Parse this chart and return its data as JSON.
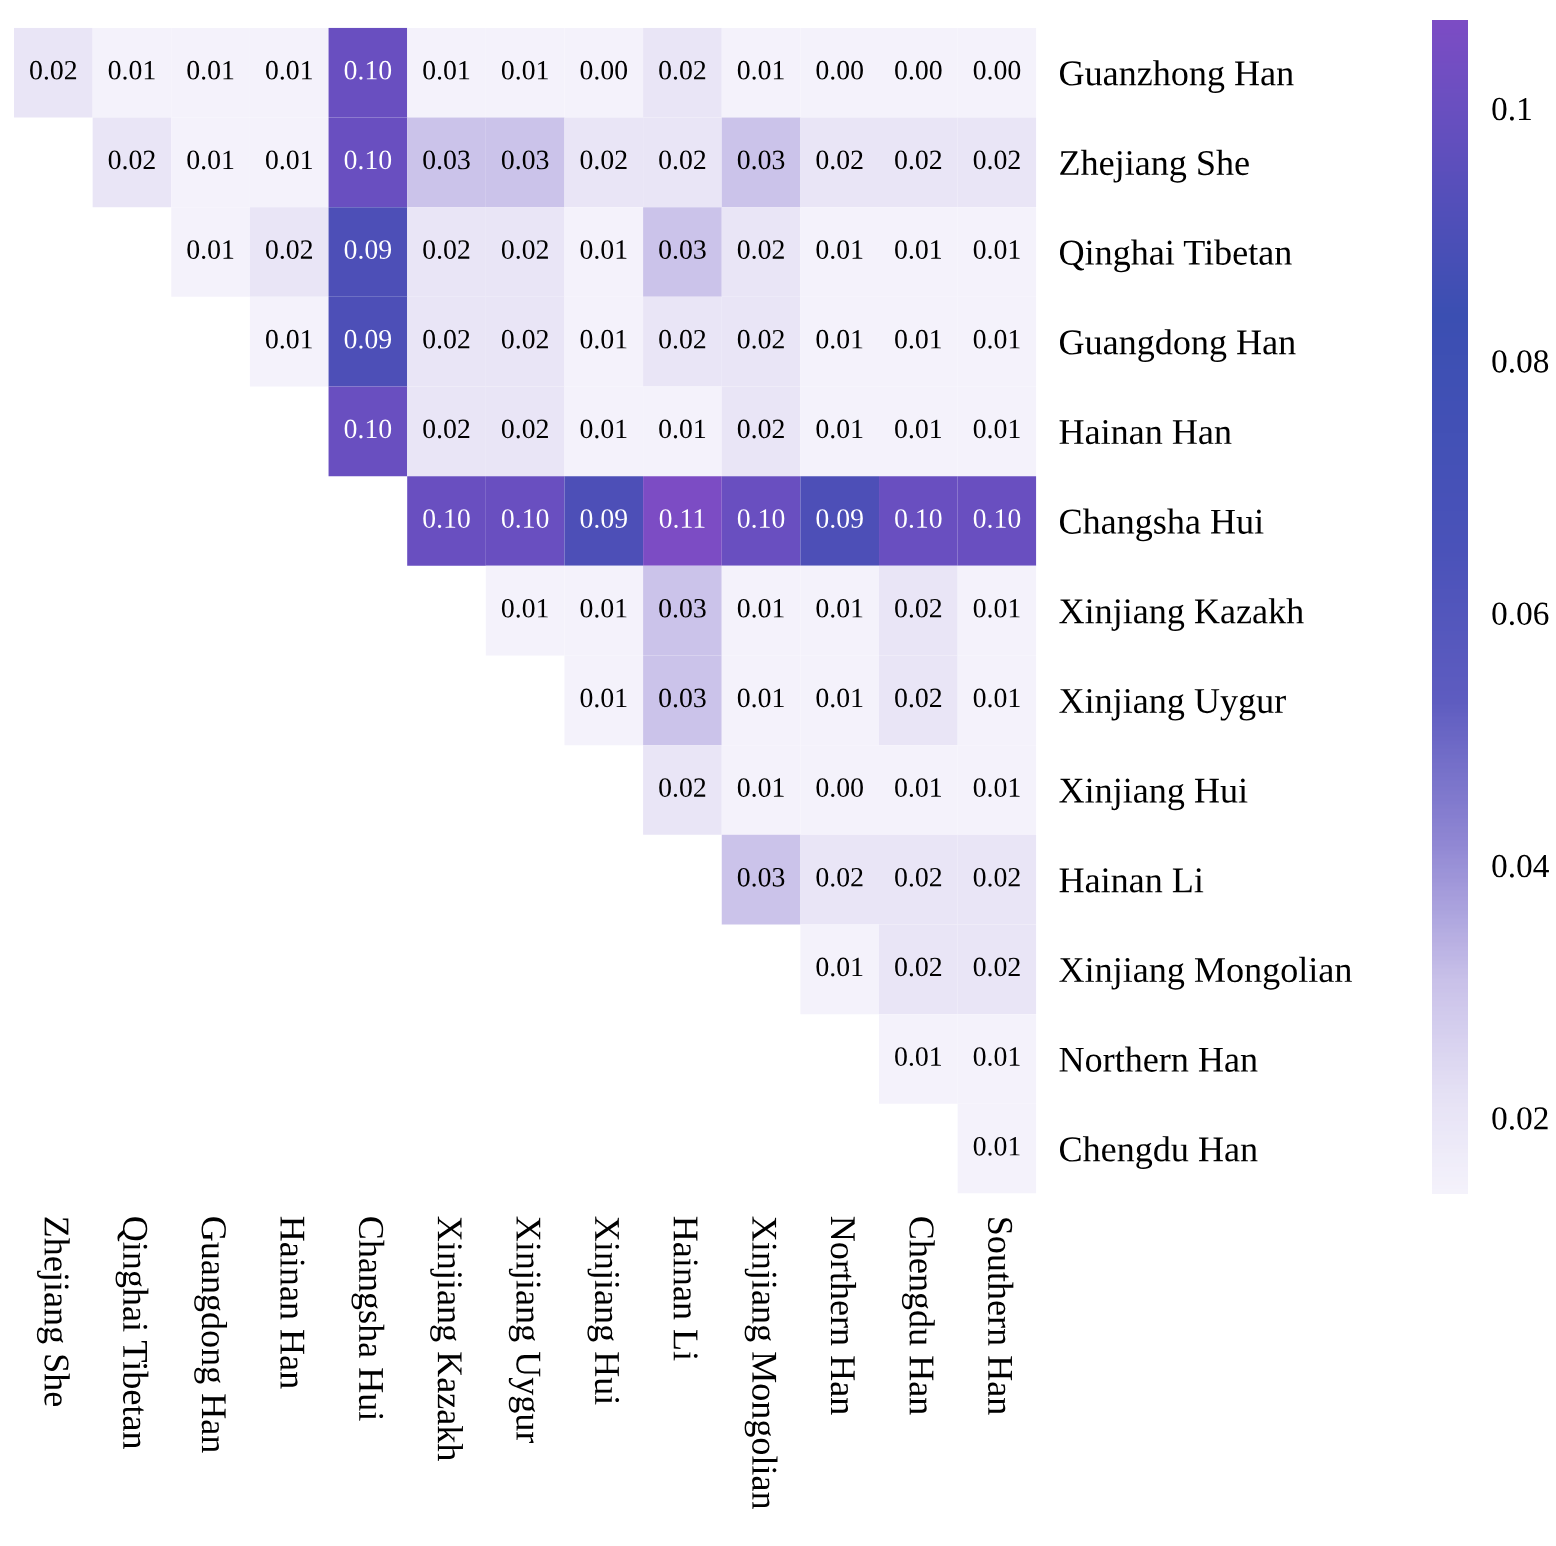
{
  "chart_data": {
    "type": "heatmap",
    "categories": [
      "Zhejiang She",
      "Qinghai Tibetan",
      "Guangdong Han",
      "Hainan Han",
      "Changsha Hui",
      "Xinjiang Kazakh",
      "Xinjiang Uygur",
      "Xinjiang Hui",
      "Hainan Li",
      "Xinjiang Mongolian",
      "Northern Han",
      "Chengdu Han",
      "Southern Han"
    ],
    "y_categories": [
      "Guanzhong Han",
      "Zhejiang She",
      "Qinghai Tibetan",
      "Guangdong Han",
      "Hainan Han",
      "Changsha Hui",
      "Xinjiang Kazakh",
      "Xinjiang Uygur",
      "Xinjiang Hui",
      "Hainan Li",
      "Xinjiang Mongolian",
      "Northern Han",
      "Chengdu Han"
    ],
    "cells": [
      [
        0.02,
        0.01,
        0.01,
        0.01,
        0.1,
        0.01,
        0.01,
        0.0,
        0.02,
        0.01,
        0.0,
        0.0,
        0.0
      ],
      [
        null,
        0.02,
        0.01,
        0.01,
        0.1,
        0.03,
        0.03,
        0.02,
        0.02,
        0.03,
        0.02,
        0.02,
        0.02
      ],
      [
        null,
        null,
        0.01,
        0.02,
        0.09,
        0.02,
        0.02,
        0.01,
        0.03,
        0.02,
        0.01,
        0.01,
        0.01
      ],
      [
        null,
        null,
        null,
        0.01,
        0.09,
        0.02,
        0.02,
        0.01,
        0.02,
        0.02,
        0.01,
        0.01,
        0.01
      ],
      [
        null,
        null,
        null,
        null,
        0.1,
        0.02,
        0.02,
        0.01,
        0.01,
        0.02,
        0.01,
        0.01,
        0.01
      ],
      [
        null,
        null,
        null,
        null,
        null,
        0.1,
        0.1,
        0.09,
        0.11,
        0.1,
        0.09,
        0.1,
        0.1
      ],
      [
        null,
        null,
        null,
        null,
        null,
        null,
        0.01,
        0.01,
        0.03,
        0.01,
        0.01,
        0.02,
        0.01
      ],
      [
        null,
        null,
        null,
        null,
        null,
        null,
        null,
        0.01,
        0.03,
        0.01,
        0.01,
        0.02,
        0.01
      ],
      [
        null,
        null,
        null,
        null,
        null,
        null,
        null,
        null,
        0.02,
        0.01,
        0.0,
        0.01,
        0.01
      ],
      [
        null,
        null,
        null,
        null,
        null,
        null,
        null,
        null,
        null,
        0.03,
        0.02,
        0.02,
        0.02
      ],
      [
        null,
        null,
        null,
        null,
        null,
        null,
        null,
        null,
        null,
        null,
        0.01,
        0.02,
        0.02
      ],
      [
        null,
        null,
        null,
        null,
        null,
        null,
        null,
        null,
        null,
        null,
        null,
        0.01,
        0.01
      ],
      [
        null,
        null,
        null,
        null,
        null,
        null,
        null,
        null,
        null,
        null,
        null,
        null,
        0.01
      ]
    ],
    "cell_labels": [
      [
        "0.02",
        "0.01",
        "0.01",
        "0.01",
        "0.10",
        "0.01",
        "0.01",
        "0.00",
        "0.02",
        "0.01",
        "0.00",
        "0.00",
        "0.00"
      ],
      [
        null,
        "0.02",
        "0.01",
        "0.01",
        "0.10",
        "0.03",
        "0.03",
        "0.02",
        "0.02",
        "0.03",
        "0.02",
        "0.02",
        "0.02"
      ],
      [
        null,
        null,
        "0.01",
        "0.02",
        "0.09",
        "0.02",
        "0.02",
        "0.01",
        "0.03",
        "0.02",
        "0.01",
        "0.01",
        "0.01"
      ],
      [
        null,
        null,
        null,
        "0.01",
        "0.09",
        "0.02",
        "0.02",
        "0.01",
        "0.02",
        "0.02",
        "0.01",
        "0.01",
        "0.01"
      ],
      [
        null,
        null,
        null,
        null,
        "0.10",
        "0.02",
        "0.02",
        "0.01",
        "0.01",
        "0.02",
        "0.01",
        "0.01",
        "0.01"
      ],
      [
        null,
        null,
        null,
        null,
        null,
        "0.10",
        "0.10",
        "0.09",
        "0.11",
        "0.10",
        "0.09",
        "0.10",
        "0.10"
      ],
      [
        null,
        null,
        null,
        null,
        null,
        null,
        "0.01",
        "0.01",
        "0.03",
        "0.01",
        "0.01",
        "0.02",
        "0.01"
      ],
      [
        null,
        null,
        null,
        null,
        null,
        null,
        null,
        "0.01",
        "0.03",
        "0.01",
        "0.01",
        "0.02",
        "0.01"
      ],
      [
        null,
        null,
        null,
        null,
        null,
        null,
        null,
        null,
        "0.02",
        "0.01",
        "0.00",
        "0.01",
        "0.01"
      ],
      [
        null,
        null,
        null,
        null,
        null,
        null,
        null,
        null,
        null,
        "0.03",
        "0.02",
        "0.02",
        "0.02"
      ],
      [
        null,
        null,
        null,
        null,
        null,
        null,
        null,
        null,
        null,
        null,
        "0.01",
        "0.02",
        "0.02"
      ],
      [
        null,
        null,
        null,
        null,
        null,
        null,
        null,
        null,
        null,
        null,
        null,
        "0.01",
        "0.01"
      ],
      [
        null,
        null,
        null,
        null,
        null,
        null,
        null,
        null,
        null,
        null,
        null,
        null,
        "0.01"
      ]
    ],
    "clim": [
      0.014,
      0.107
    ],
    "cticks": [
      0.02,
      0.04,
      0.06,
      0.08,
      0.1
    ]
  }
}
